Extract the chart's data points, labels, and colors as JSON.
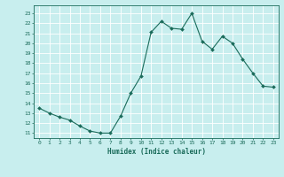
{
  "x": [
    0,
    1,
    2,
    3,
    4,
    5,
    6,
    7,
    8,
    9,
    10,
    11,
    12,
    13,
    14,
    15,
    16,
    17,
    18,
    19,
    20,
    21,
    22,
    23
  ],
  "y": [
    13.5,
    13.0,
    12.6,
    12.3,
    11.7,
    11.2,
    11.0,
    11.0,
    12.7,
    15.0,
    16.7,
    21.1,
    22.2,
    21.5,
    21.4,
    23.0,
    20.2,
    19.4,
    20.7,
    20.0,
    18.4,
    17.0,
    15.7,
    15.6
  ],
  "line_color": "#1a6b5a",
  "marker": "D",
  "marker_size": 2.0,
  "bg_color": "#c8eeee",
  "grid_color": "#ffffff",
  "tick_color": "#1a6b5a",
  "xlabel": "Humidex (Indice chaleur)",
  "ylabel_ticks": [
    11,
    12,
    13,
    14,
    15,
    16,
    17,
    18,
    19,
    20,
    21,
    22,
    23
  ],
  "xlim": [
    -0.5,
    23.5
  ],
  "ylim": [
    10.5,
    23.8
  ]
}
